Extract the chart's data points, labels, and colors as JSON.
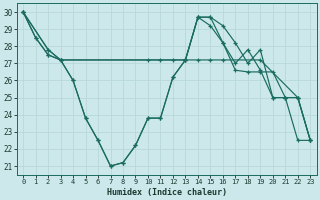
{
  "xlabel": "Humidex (Indice chaleur)",
  "bg_color": "#cce8ea",
  "grid_color": "#b8d8da",
  "line_color": "#1a6b60",
  "xlim": [
    -0.5,
    23.5
  ],
  "ylim": [
    20.5,
    30.5
  ],
  "yticks": [
    21,
    22,
    23,
    24,
    25,
    26,
    27,
    28,
    29,
    30
  ],
  "xticks": [
    0,
    1,
    2,
    3,
    4,
    5,
    6,
    7,
    8,
    9,
    10,
    11,
    12,
    13,
    14,
    15,
    16,
    17,
    18,
    19,
    20,
    21,
    22,
    23
  ],
  "series": [
    {
      "x": [
        0,
        1,
        2,
        3,
        4,
        5,
        6,
        7,
        8,
        9,
        10,
        11,
        12,
        13,
        14,
        15,
        16,
        17,
        18,
        19,
        20,
        21,
        22,
        23
      ],
      "y": [
        30,
        28.5,
        27.5,
        27.2,
        26.0,
        23.8,
        22.5,
        21.0,
        21.2,
        22.2,
        23.8,
        23.8,
        26.2,
        27.2,
        29.7,
        29.7,
        28.2,
        26.6,
        26.5,
        26.5,
        26.5,
        25.0,
        22.5,
        22.5
      ]
    },
    {
      "x": [
        0,
        1,
        2,
        3,
        4,
        5,
        6,
        7,
        8,
        9,
        10,
        11,
        12,
        13,
        14,
        15,
        16,
        17,
        18,
        19,
        20,
        21,
        22,
        23
      ],
      "y": [
        30,
        28.5,
        27.5,
        27.2,
        26.0,
        23.8,
        22.5,
        21.0,
        21.2,
        22.2,
        23.8,
        23.8,
        26.2,
        27.2,
        29.7,
        29.7,
        29.2,
        28.2,
        27.0,
        27.8,
        25.0,
        25.0,
        25.0,
        22.5
      ]
    },
    {
      "x": [
        0,
        2,
        3,
        10,
        11,
        12,
        13,
        14,
        15,
        16,
        19,
        22,
        23
      ],
      "y": [
        30,
        27.8,
        27.2,
        27.2,
        27.2,
        27.2,
        27.2,
        27.2,
        27.2,
        27.2,
        27.2,
        25.0,
        22.5
      ]
    },
    {
      "x": [
        0,
        2,
        3,
        13,
        14,
        15,
        16,
        17,
        18,
        19,
        20,
        21,
        22,
        23
      ],
      "y": [
        30,
        27.8,
        27.2,
        27.2,
        29.7,
        29.2,
        28.2,
        27.0,
        27.8,
        26.6,
        25.0,
        25.0,
        25.0,
        22.5
      ]
    }
  ]
}
